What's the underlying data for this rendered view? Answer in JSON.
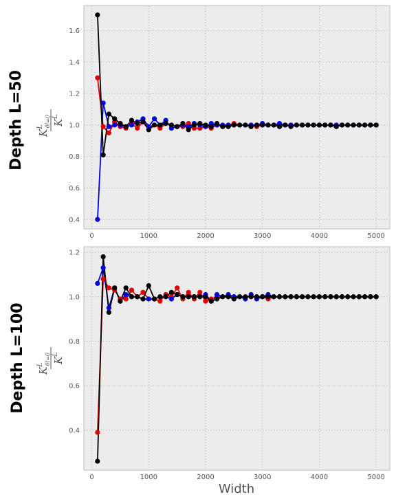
{
  "figure": {
    "xlabel": "Width"
  },
  "chart_data": [
    {
      "type": "line",
      "row_title": "Depth L=50",
      "ylabel_num": "K",
      "ylabel_num_sup": "L",
      "ylabel_num_sub": "θl=0",
      "ylabel_den": "K",
      "ylabel_den_sup": "L",
      "xlim": [
        -140,
        5240
      ],
      "ylim": [
        0.34,
        1.76
      ],
      "xticks": [
        0,
        1000,
        2000,
        3000,
        4000,
        5000
      ],
      "yticks": [
        0.4,
        0.6,
        0.8,
        1.0,
        1.2,
        1.4,
        1.6
      ],
      "ytick_labels": [
        "0.4",
        "0.6",
        "0.8",
        "1.0",
        "1.2",
        "1.4",
        "1.6"
      ],
      "grid": true,
      "x": [
        100,
        200,
        300,
        400,
        500,
        600,
        700,
        800,
        900,
        1000,
        1100,
        1200,
        1300,
        1400,
        1500,
        1600,
        1700,
        1800,
        1900,
        2000,
        2100,
        2200,
        2300,
        2400,
        2500,
        2600,
        2700,
        2800,
        2900,
        3000,
        3100,
        3200,
        3300,
        3400,
        3500,
        3600,
        3700,
        3800,
        3900,
        4000,
        4100,
        4200,
        4300,
        4400,
        4500,
        4600,
        4700,
        4800,
        4900,
        5000
      ],
      "series": [
        {
          "color": "#e00000",
          "values": [
            1.3,
            0.99,
            0.95,
            1.02,
            0.99,
            0.98,
            1.01,
            0.98,
            1.02,
            0.99,
            1.0,
            0.98,
            1.01,
            1.0,
            0.99,
            0.99,
            1.01,
            0.98,
            0.98,
            0.99,
            0.98,
            1.0,
            0.99,
            1.0,
            1.01,
            1.0,
            1.0,
            1.0,
            0.99,
            1.0,
            1.0,
            1.0,
            1.0,
            1.0,
            1.0,
            1.0,
            1.0,
            1.0,
            1.0,
            1.0,
            1.0,
            1.0,
            1.0,
            1.0,
            1.0,
            1.0,
            1.0,
            1.0,
            1.0,
            1.0
          ]
        },
        {
          "color": "#0000e0",
          "values": [
            0.4,
            1.14,
            0.99,
            1.0,
            1.0,
            0.99,
            1.0,
            1.02,
            1.04,
            0.99,
            1.04,
            1.0,
            1.03,
            0.98,
            0.99,
            1.0,
            0.99,
            1.01,
            1.0,
            0.99,
            1.01,
            1.0,
            1.0,
            1.0,
            1.0,
            1.0,
            1.0,
            1.0,
            1.0,
            1.01,
            1.0,
            1.0,
            1.01,
            1.0,
            1.0,
            1.0,
            1.0,
            1.0,
            1.0,
            1.0,
            1.0,
            1.0,
            1.0,
            1.0,
            1.0,
            1.0,
            1.0,
            1.0,
            1.0,
            1.0
          ]
        },
        {
          "color": "#000000",
          "values": [
            1.7,
            0.81,
            1.07,
            1.04,
            1.01,
            0.99,
            1.03,
            1.01,
            1.02,
            0.97,
            1.0,
            1.0,
            1.01,
            1.0,
            0.99,
            1.01,
            0.97,
            1.0,
            1.01,
            1.0,
            0.99,
            1.01,
            0.99,
            0.99,
            1.0,
            1.0,
            1.0,
            0.99,
            1.0,
            1.0,
            1.0,
            1.0,
            0.99,
            1.0,
            0.99,
            1.0,
            1.0,
            1.0,
            1.0,
            1.0,
            1.0,
            1.0,
            0.99,
            1.0,
            1.0,
            1.0,
            1.0,
            1.0,
            1.0,
            1.0
          ]
        }
      ]
    },
    {
      "type": "line",
      "row_title": "Depth L=100",
      "ylabel_num": "K",
      "ylabel_num_sup": "L",
      "ylabel_num_sub": "θl=0",
      "ylabel_den": "K",
      "ylabel_den_sup": "L",
      "xlim": [
        -140,
        5240
      ],
      "ylim": [
        0.22,
        1.225
      ],
      "xticks": [
        0,
        1000,
        2000,
        3000,
        4000,
        5000
      ],
      "yticks": [
        0.4,
        0.6,
        0.8,
        1.0,
        1.2
      ],
      "ytick_labels": [
        "0.4",
        "0.6",
        "0.8",
        "1.0",
        "1.2"
      ],
      "grid": true,
      "x": [
        100,
        200,
        300,
        400,
        500,
        600,
        700,
        800,
        900,
        1000,
        1100,
        1200,
        1300,
        1400,
        1500,
        1600,
        1700,
        1800,
        1900,
        2000,
        2100,
        2200,
        2300,
        2400,
        2500,
        2600,
        2700,
        2800,
        2900,
        3000,
        3100,
        3200,
        3300,
        3400,
        3500,
        3600,
        3700,
        3800,
        3900,
        4000,
        4100,
        4200,
        4300,
        4400,
        4500,
        4600,
        4700,
        4800,
        4900,
        5000
      ],
      "series": [
        {
          "color": "#e00000",
          "values": [
            0.39,
            1.08,
            1.04,
            1.03,
            0.99,
            0.99,
            1.03,
            1.0,
            1.02,
            0.99,
            0.99,
            0.98,
            1.01,
            1.0,
            1.04,
            0.99,
            1.02,
            0.99,
            1.02,
            0.98,
            0.99,
            1.0,
            1.0,
            1.0,
            1.0,
            1.0,
            1.0,
            1.0,
            1.0,
            1.0,
            0.99,
            1.0,
            1.0,
            1.0,
            1.0,
            1.0,
            1.0,
            1.0,
            1.0,
            1.0,
            1.0,
            1.0,
            1.0,
            1.0,
            1.0,
            1.0,
            1.0,
            1.0,
            1.0,
            1.0
          ]
        },
        {
          "color": "#0000e0",
          "values": [
            1.06,
            1.13,
            0.95,
            1.04,
            0.98,
            1.01,
            1.0,
            1.0,
            0.99,
            0.99,
            0.99,
            1.0,
            1.0,
            0.99,
            1.01,
            1.0,
            1.0,
            1.0,
            1.0,
            1.01,
            0.98,
            1.01,
            1.0,
            1.01,
            1.0,
            1.0,
            0.99,
            1.01,
            0.99,
            1.0,
            1.01,
            1.0,
            1.0,
            1.0,
            1.0,
            1.0,
            1.0,
            1.0,
            1.0,
            1.0,
            1.0,
            1.0,
            1.0,
            1.0,
            1.0,
            1.0,
            1.0,
            1.0,
            1.0,
            1.0
          ]
        },
        {
          "color": "#000000",
          "values": [
            0.26,
            1.18,
            0.93,
            1.04,
            0.98,
            1.04,
            1.0,
            1.0,
            0.99,
            1.05,
            0.99,
            1.0,
            1.0,
            1.02,
            1.01,
            1.0,
            1.0,
            1.0,
            1.0,
            1.0,
            0.98,
            0.99,
            1.0,
            1.0,
            0.99,
            1.0,
            1.0,
            1.0,
            1.0,
            1.0,
            1.0,
            1.0,
            1.0,
            1.0,
            1.0,
            1.0,
            1.0,
            1.0,
            1.0,
            1.0,
            1.0,
            1.0,
            1.0,
            1.0,
            1.0,
            1.0,
            1.0,
            1.0,
            1.0,
            1.0
          ]
        }
      ]
    }
  ]
}
